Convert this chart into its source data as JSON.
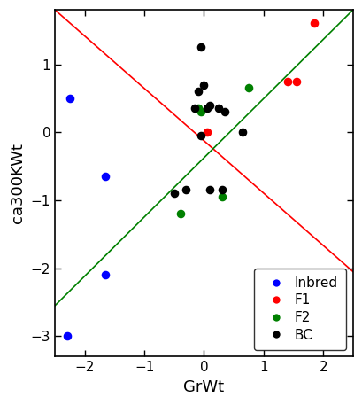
{
  "title": "",
  "xlabel": "GrWt",
  "ylabel": "ca300KWt",
  "xlim": [
    -2.5,
    2.5
  ],
  "ylim": [
    -3.3,
    1.8
  ],
  "xticks": [
    -2,
    -1,
    0,
    1,
    2
  ],
  "yticks": [
    -3,
    -2,
    -1,
    0,
    1
  ],
  "inbred": {
    "x": [
      -2.25,
      -1.65,
      -1.65,
      -2.3
    ],
    "y": [
      0.5,
      -0.65,
      -2.1,
      -3.0
    ],
    "color": "blue"
  },
  "F1": {
    "x": [
      1.85,
      1.4,
      1.55,
      0.05
    ],
    "y": [
      1.6,
      0.75,
      0.75,
      0.0
    ],
    "color": "red"
  },
  "F2": {
    "x": [
      -0.1,
      -0.05,
      0.3,
      0.75,
      -0.4
    ],
    "y": [
      0.35,
      0.3,
      -0.95,
      0.65,
      -1.2
    ],
    "color": "green"
  },
  "BC": {
    "x": [
      -0.05,
      0.0,
      -0.1,
      -0.15,
      0.05,
      0.1,
      0.25,
      0.35,
      -0.05,
      0.65,
      0.1,
      -0.5,
      -0.3,
      0.3
    ],
    "y": [
      1.25,
      0.7,
      0.6,
      0.35,
      0.35,
      0.4,
      0.35,
      0.3,
      -0.05,
      0.0,
      -0.85,
      -0.9,
      -0.85,
      -0.85
    ],
    "color": "black"
  },
  "red_line_x": [
    -2.5,
    2.5
  ],
  "red_line_y": [
    1.8,
    -2.05
  ],
  "green_line_x": [
    -2.5,
    2.5
  ],
  "green_line_y": [
    -2.55,
    1.8
  ],
  "legend_labels": [
    "Inbred",
    "F1",
    "F2",
    "BC"
  ],
  "legend_colors": [
    "blue",
    "red",
    "green",
    "black"
  ],
  "bg_color": "#ffffff",
  "point_size": 35,
  "line_width": 1.2
}
